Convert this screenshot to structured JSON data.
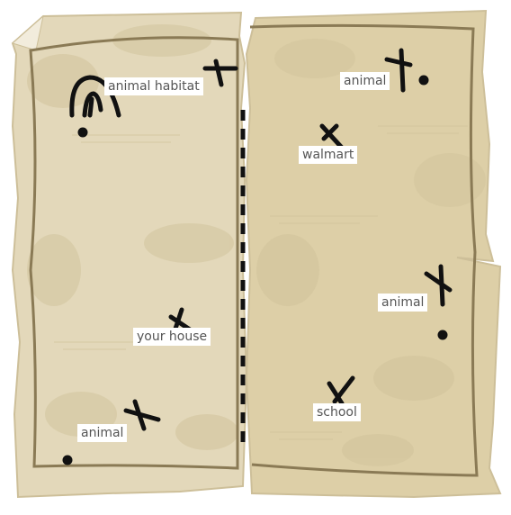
{
  "map": {
    "colors": {
      "paper_light": "#e6dcc0",
      "paper_dark": "#d9cba4",
      "paper_blot": "#c8b98f",
      "border_line": "#8a7a55",
      "ink": "#111111",
      "label_bg": "#ffffff",
      "label_text": "#555555"
    },
    "labels": {
      "animal_habitat": "animal habitat",
      "animal_top_right": "animal",
      "walmart": "walmart",
      "your_house": "your house",
      "animal_right": "animal",
      "school": "school",
      "animal_bottom_left": "animal"
    }
  }
}
